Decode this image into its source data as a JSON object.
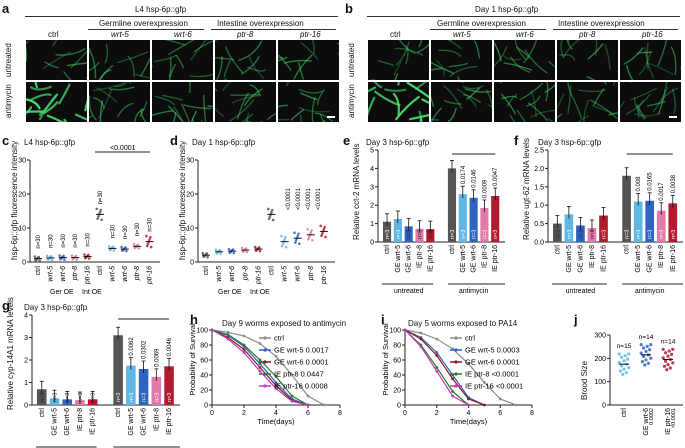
{
  "panels": {
    "a": {
      "label": "a",
      "title": "L4 hsp-6p::gfp",
      "groups": {
        "germline": "Germline overexpression",
        "intestine": "Intestine overexpression"
      },
      "columns": [
        "ctrl",
        "wrt-5",
        "wrt-6",
        "ptr-8",
        "ptr-16"
      ],
      "rows": [
        "untreated",
        "antimycin"
      ]
    },
    "b": {
      "label": "b",
      "title": "Day 1 hsp-6p::gfp",
      "groups": {
        "germline": "Germline overexpression",
        "intestine": "Intestine overexpression"
      },
      "columns": [
        "ctrl",
        "wrt-5",
        "wrt-6",
        "ptr-8",
        "ptr-16"
      ],
      "rows": [
        "untreated",
        "antimycin"
      ]
    },
    "c": {
      "label": "c",
      "title": "L4 hsp-6p::gfp",
      "ylabel": "hsp-6p::gfp fluorescence intensity",
      "pvalue": "<0.0001"
    },
    "d": {
      "label": "d",
      "title": "Day 1 hsp-6p::gfp",
      "ylabel": "hsp-6p::gfp fluorescence intensity"
    },
    "e": {
      "label": "e",
      "title": "Day 3 hsp-6p::gfp",
      "ylabel": "Relative cct-2 mRNA levels"
    },
    "f": {
      "label": "f",
      "title": "Day 3 hsp-6p::gfp",
      "ylabel": "Relative ugt-62 mRNA levels"
    },
    "g": {
      "label": "g",
      "title": "Day 3 hsp-6p::gfp",
      "ylabel": "Relative cyp-14A1 mRNA levels"
    },
    "h": {
      "label": "h",
      "title": "Day 9 worms exposed to antimycin"
    },
    "i": {
      "label": "i",
      "title": "Day 5 worms exposed to PA14"
    },
    "j": {
      "label": "j",
      "ylabel": "Brood Size"
    }
  },
  "common": {
    "conditions": [
      "untreated",
      "antimycin"
    ],
    "dot_labels_c": [
      "ctrl",
      "Ger OE",
      "Int OE",
      "ctrl",
      "wrt-5",
      "wrt-6",
      "ptr-8",
      "ptr-16"
    ],
    "bar_labels": [
      "ctrl",
      "GE wrt-5",
      "GE wrt-6",
      "IE ptr-8",
      "IE ptr-16"
    ],
    "n30": "n=30",
    "n3": "n=3"
  },
  "chart_data": [
    {
      "panel": "c",
      "type": "scatter",
      "categories": [
        "ctrl",
        "wrt-5",
        "wrt-6",
        "ptr-8",
        "ptr-16",
        "ctrl",
        "wrt-5",
        "wrt-6",
        "ptr-8",
        "ptr-16"
      ],
      "group_labels": [
        "Ger OE",
        "Int OE"
      ],
      "values": [
        1,
        1.2,
        1.3,
        1.3,
        1.6,
        14,
        4,
        3.8,
        4.6,
        6
      ],
      "n": [
        "n=30",
        "n=30",
        "n=30",
        "n=30",
        "n=30",
        "n=30",
        "n=30",
        "n=30",
        "n=30",
        "n=30"
      ],
      "ylim": [
        0,
        30
      ],
      "yticks": [
        0,
        10,
        20,
        30
      ]
    },
    {
      "panel": "d",
      "type": "scatter",
      "categories": [
        "ctrl",
        "wrt-5",
        "wrt-6",
        "ptr-8",
        "ptr-16",
        "ctrl",
        "wrt-5",
        "wrt-6",
        "ptr-8",
        "ptr-16"
      ],
      "group_labels": [
        "Ger OE",
        "Int OE"
      ],
      "values": [
        2,
        3,
        3.2,
        3.5,
        3.8,
        14,
        6,
        7,
        8,
        9
      ],
      "pvalues": [
        "<0.0001",
        "<0.0001",
        "<0.0001",
        "<0.0001"
      ],
      "ylim": [
        0,
        30
      ],
      "yticks": [
        0,
        10,
        20,
        30
      ]
    },
    {
      "panel": "e",
      "type": "bar",
      "categories": [
        "ctrl",
        "GE wrt-5",
        "GE wrt-6",
        "IE ptr-8",
        "IE ptr-16"
      ],
      "series": [
        {
          "name": "untreated",
          "values": [
            1.1,
            1.25,
            0.85,
            0.72,
            0.7
          ]
        },
        {
          "name": "antimycin",
          "values": [
            4.0,
            2.6,
            2.4,
            1.85,
            2.5
          ]
        }
      ],
      "pvalues": [
        "0.0174",
        "0.0146",
        "0.0009",
        "0.0047"
      ],
      "ylim": [
        0,
        5
      ],
      "yticks": [
        0,
        1,
        2,
        3,
        4,
        5
      ]
    },
    {
      "panel": "f",
      "type": "bar",
      "categories": [
        "ctrl",
        "GE wrt-5",
        "GE wrt-6",
        "IE ptr-8",
        "IE ptr-16"
      ],
      "series": [
        {
          "name": "untreated",
          "values": [
            0.5,
            0.75,
            0.45,
            0.38,
            0.72
          ]
        },
        {
          "name": "antimycin",
          "values": [
            1.8,
            1.1,
            1.12,
            0.85,
            1.05
          ]
        }
      ],
      "pvalues": [
        "0.008",
        "0.0165",
        "0.0017",
        "0.0038"
      ],
      "ylim": [
        0,
        2.5
      ],
      "yticks": [
        0,
        0.5,
        1.0,
        1.5,
        2.0,
        2.5
      ]
    },
    {
      "panel": "g",
      "type": "bar",
      "categories": [
        "ctrl",
        "GE wrt-5",
        "GE wrt-6",
        "IE ptr-8",
        "IE ptr-16"
      ],
      "series": [
        {
          "name": "untreated",
          "values": [
            0.7,
            0.3,
            0.25,
            0.22,
            0.25
          ]
        },
        {
          "name": "antimycin",
          "values": [
            3.1,
            1.75,
            1.6,
            1.25,
            1.72
          ]
        }
      ],
      "pvalues": [
        "0.0062",
        "0.0302",
        "0.0069",
        "0.0046"
      ],
      "ylim": [
        0,
        4
      ],
      "yticks": [
        0,
        1,
        2,
        3,
        4
      ]
    },
    {
      "panel": "h",
      "type": "line",
      "series": [
        {
          "name": "ctrl",
          "p": "",
          "x": [
            0,
            1,
            2,
            3,
            4,
            5,
            6,
            7
          ],
          "y": [
            100,
            97,
            92,
            82,
            65,
            40,
            12,
            0
          ]
        },
        {
          "name": "GE wrt-5",
          "p": "0.0017",
          "x": [
            0,
            1,
            2,
            3,
            4,
            5,
            6
          ],
          "y": [
            100,
            93,
            78,
            55,
            30,
            8,
            0
          ]
        },
        {
          "name": "GE wrt-6",
          "p": "0.0001",
          "x": [
            0,
            1,
            2,
            3,
            4,
            5,
            6
          ],
          "y": [
            100,
            90,
            74,
            50,
            26,
            6,
            0
          ]
        },
        {
          "name": "IE ptr-8",
          "p": "0.0447",
          "x": [
            0,
            1,
            2,
            3,
            4,
            5,
            6
          ],
          "y": [
            100,
            94,
            80,
            60,
            38,
            12,
            0
          ]
        },
        {
          "name": "IE ptr-16",
          "p": "0.0008",
          "x": [
            0,
            1,
            2,
            3,
            4,
            5,
            6
          ],
          "y": [
            100,
            88,
            70,
            45,
            22,
            5,
            0
          ]
        }
      ],
      "xlabel": "Time(days)",
      "ylabel": "Probability of Survival",
      "xlim": [
        0,
        8
      ],
      "ylim": [
        0,
        100
      ],
      "xticks": [
        0,
        2,
        4,
        6,
        8
      ],
      "yticks": [
        0,
        20,
        40,
        60,
        80,
        100
      ]
    },
    {
      "panel": "i",
      "type": "line",
      "series": [
        {
          "name": "ctrl",
          "p": "",
          "x": [
            0,
            1,
            2,
            3,
            4,
            5,
            6,
            7
          ],
          "y": [
            100,
            96,
            88,
            75,
            55,
            30,
            8,
            0
          ]
        },
        {
          "name": "GE wrt-5",
          "p": "0.0003",
          "x": [
            0,
            1,
            2,
            3,
            4,
            5
          ],
          "y": [
            100,
            90,
            70,
            40,
            10,
            0
          ]
        },
        {
          "name": "GE wrt-6",
          "p": "0.0001",
          "x": [
            0,
            1,
            2,
            3,
            4,
            5
          ],
          "y": [
            100,
            88,
            66,
            35,
            8,
            0
          ]
        },
        {
          "name": "IE ptr-8",
          "p": "<0.0001",
          "x": [
            0,
            1,
            2,
            3,
            4
          ],
          "y": [
            100,
            80,
            50,
            18,
            0
          ]
        },
        {
          "name": "IE ptr-16",
          "p": "<0.0001",
          "x": [
            0,
            1,
            2,
            3,
            4
          ],
          "y": [
            100,
            78,
            45,
            12,
            0
          ]
        }
      ],
      "xlabel": "Time(days)",
      "ylabel": "Probability of Survival",
      "xlim": [
        0,
        8
      ],
      "ylim": [
        0,
        100
      ],
      "xticks": [
        0,
        2,
        4,
        6,
        8
      ],
      "yticks": [
        0,
        20,
        40,
        60,
        80,
        100
      ]
    },
    {
      "panel": "j",
      "type": "scatter",
      "categories": [
        "ctrl",
        "GE wrt-6",
        "IE ptr-16"
      ],
      "values": [
        175,
        215,
        195
      ],
      "n": [
        "n=15",
        "n=14",
        "n=14"
      ],
      "pvalues": [
        "",
        "0.0002",
        "<0.0001"
      ],
      "ylim": [
        0,
        300
      ],
      "yticks": [
        0,
        100,
        200,
        300
      ]
    }
  ],
  "colors": {
    "ctrl": "#555555",
    "wrt5": "#5fb7e6",
    "wrt6": "#2f63c0",
    "ptr8": "#e07aa8",
    "ptr16": "#b01c2e",
    "gfp": "#48e070",
    "h_ctrl": "#8c8c8c",
    "h_wrt5": "#2f63c0",
    "h_wrt6": "#8b1a1a",
    "h_ptr8": "#2c7a2c",
    "h_ptr16": "#c03bc0"
  }
}
